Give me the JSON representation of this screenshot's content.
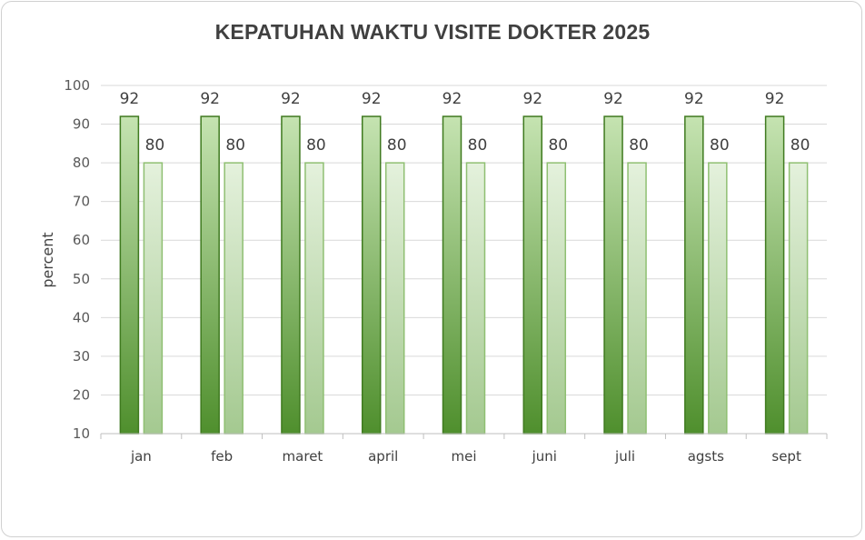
{
  "chart_data": {
    "type": "bar",
    "title": "KEPATUHAN WAKTU VISITE DOKTER 2025",
    "ylabel": "percent",
    "xlabel": "",
    "ylim": [
      10,
      100
    ],
    "yticks": [
      10,
      20,
      30,
      40,
      50,
      60,
      70,
      80,
      90,
      100
    ],
    "categories": [
      "jan",
      "feb",
      "maret",
      "april",
      "mei",
      "juni",
      "juli",
      "agsts",
      "sept"
    ],
    "series": [
      {
        "values": [
          92,
          92,
          92,
          92,
          92,
          92,
          92,
          92,
          92
        ],
        "color": "#6aaa45"
      },
      {
        "values": [
          80,
          80,
          80,
          80,
          80,
          80,
          80,
          80,
          80
        ],
        "color": "#a9d08e"
      }
    ],
    "data_labels": true,
    "grid": true,
    "legend": "none"
  }
}
